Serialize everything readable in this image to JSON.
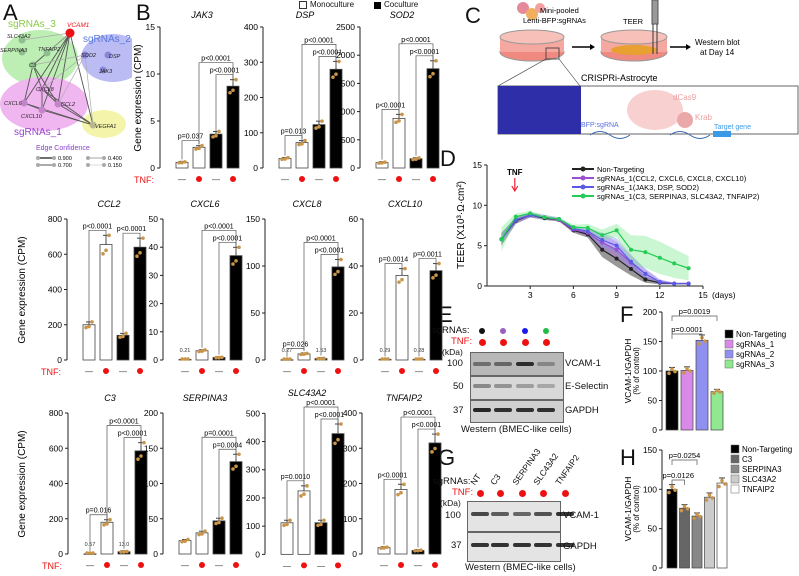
{
  "panel_letters": {
    "a": "A",
    "b": "B",
    "c": "C",
    "d": "D",
    "e": "E",
    "f": "F",
    "g": "G",
    "h": "H"
  },
  "panel_a": {
    "groups": {
      "g3": "sgRNAs_3",
      "g2": "sgRNAs_2",
      "g1": "sgRNAs_1"
    },
    "nodes": {
      "vcam1": "VCAM1",
      "slc43a2": "SLC43A2",
      "serpina3": "SERPINA3",
      "tnfaip2": "TNFAIP2",
      "c3": "C3",
      "sod2": "SOD2",
      "dsp": "DSP",
      "jak3": "JAK3",
      "cxcl8": "CXCL8",
      "cxcl6": "CXCL6",
      "ccl2": "CCL2",
      "cxcl10": "CXCL10",
      "vegfa1": "VEGFA1"
    },
    "legend_title": "Edge Confidence",
    "legend_values": [
      "0.900",
      "0.700",
      "0.400",
      "0.150"
    ],
    "colors": {
      "g3": "#b9ecb0",
      "g2": "#b8b8f4",
      "g1": "#eeb0ee",
      "vegfa": "#f3f3a8",
      "vcam1": "#ee1111"
    }
  },
  "panel_b": {
    "legend": {
      "mono": "Monoculture",
      "co": "Coculture"
    },
    "tnf_label": "TNF:",
    "minus": "—",
    "ylabel": "Gene expression (CPM)",
    "dot_color": "#c8954a",
    "tnf_color": "#ee1111"
  },
  "panel_c": {
    "virus_line1": "Mini-pooled",
    "virus_line2": "Lenti-BFP:sgRNAs",
    "teer": "TEER",
    "western_line1": "Western blot",
    "western_line2": "at Day 14",
    "astro": "CRISPRi-Astrocyte",
    "dcas9": "dCas9",
    "krab": "Krab",
    "sgrna": "BFP:sgRNA",
    "target": "Target gene"
  },
  "panel_d": {
    "tnf": "TNF",
    "days": "(days)"
  },
  "panel_e": {
    "sgrnas_label": "sgRNAs:",
    "tnf_label": "TNF:",
    "kda": "(kDa)",
    "markers": [
      "100",
      "50",
      "37"
    ],
    "bands": [
      "VCAM-1",
      "E-Selectin",
      "GAPDH"
    ],
    "caption": "Western (BMEC-like cells)",
    "dot_colors": [
      "#111111",
      "#9a5fc0",
      "#1a1aee",
      "#22bb44"
    ]
  },
  "panel_g": {
    "sgrnas_label": "sgRNAs:",
    "tnf_label": "TNF:",
    "lanes": [
      "NT",
      "C3",
      "SERPINA3",
      "SLC43A2",
      "TNFAIP2"
    ],
    "kda": "(kDa)",
    "markers": [
      "100",
      "37"
    ],
    "bands": [
      "VCAM-1",
      "GAPDH"
    ],
    "caption": "Western (BMEC-like cells)"
  },
  "chart_data": [
    {
      "type": "bar",
      "title": "JAK3",
      "ylim": [
        0,
        15
      ],
      "yticks": [
        "0",
        "5",
        "10",
        "15"
      ],
      "values": [
        0.6,
        2.2,
        3.6,
        8.7
      ],
      "tnf": [
        false,
        true,
        false,
        true
      ],
      "small_labels": [],
      "comparisons": [
        {
          "a": 0,
          "b": 1,
          "p": "p=0.037"
        },
        {
          "a": 2,
          "b": 3,
          "p": "p<0.0001"
        },
        {
          "a": 1,
          "b": 3,
          "p": "p<0.0001"
        }
      ]
    },
    {
      "type": "bar",
      "title": "DSP",
      "ylim": [
        0,
        400
      ],
      "yticks": [
        "0",
        "100",
        "200",
        "300",
        "400"
      ],
      "values": [
        27,
        72,
        123,
        280
      ],
      "tnf": [
        false,
        true,
        false,
        true
      ],
      "small_labels": [],
      "comparisons": [
        {
          "a": 0,
          "b": 1,
          "p": "p=0.013"
        },
        {
          "a": 2,
          "b": 3,
          "p": "p<0.0001"
        },
        {
          "a": 1,
          "b": 3,
          "p": "p<0.0001"
        }
      ]
    },
    {
      "type": "bar",
      "title": "SOD2",
      "ylim": [
        0,
        2500
      ],
      "yticks": [
        "0",
        "500",
        "1000",
        "1500",
        "2000",
        "2500"
      ],
      "values": [
        95,
        880,
        165,
        1760
      ],
      "tnf": [
        false,
        true,
        false,
        true
      ],
      "small_labels": [],
      "comparisons": [
        {
          "a": 0,
          "b": 1,
          "p": "p<0.0001"
        },
        {
          "a": 2,
          "b": 3,
          "p": "p<0.0001"
        },
        {
          "a": 1,
          "b": 3,
          "p": "p<0.0001"
        }
      ]
    },
    {
      "type": "bar",
      "title": "CCL2",
      "ylim": [
        0,
        800
      ],
      "yticks": [
        "0",
        "200",
        "400",
        "600",
        "800"
      ],
      "values": [
        200,
        655,
        140,
        640
      ],
      "tnf": [
        false,
        true,
        false,
        true
      ],
      "small_labels": [],
      "comparisons": [
        {
          "a": 0,
          "b": 1,
          "p": "p<0.0001"
        },
        {
          "a": 2,
          "b": 3,
          "p": "p<0.0001"
        }
      ]
    },
    {
      "type": "bar",
      "title": "CXCL6",
      "ylim": [
        0,
        50
      ],
      "yticks": [
        "0",
        "10",
        "20",
        "30",
        "40",
        "50"
      ],
      "values": [
        0.21,
        3.3,
        0.9,
        37
      ],
      "tnf": [
        false,
        true,
        false,
        true
      ],
      "small_labels": [
        {
          "bar": 0,
          "text": "0.21"
        }
      ],
      "comparisons": [
        {
          "a": 2,
          "b": 3,
          "p": "p<0.0001"
        },
        {
          "a": 1,
          "b": 3,
          "p": "p<0.0001"
        }
      ]
    },
    {
      "type": "bar",
      "title": "CXCL8",
      "ylim": [
        0,
        150
      ],
      "yticks": [
        "0",
        "50",
        "100",
        "150"
      ],
      "values": [
        0.27,
        6.5,
        1.53,
        99
      ],
      "tnf": [
        false,
        true,
        false,
        true
      ],
      "small_labels": [
        {
          "bar": 0,
          "text": "0.27"
        },
        {
          "bar": 2,
          "text": "1.53"
        }
      ],
      "comparisons": [
        {
          "a": 0,
          "b": 1,
          "p": "p=0.026"
        },
        {
          "a": 2,
          "b": 3,
          "p": "p<0.0001"
        },
        {
          "a": 1,
          "b": 3,
          "p": "p<0.0001"
        }
      ]
    },
    {
      "type": "bar",
      "title": "CXCL10",
      "ylim": [
        0,
        60
      ],
      "yticks": [
        "0",
        "20",
        "40",
        "60"
      ],
      "values": [
        0.29,
        36,
        0.28,
        38
      ],
      "tnf": [
        false,
        true,
        false,
        true
      ],
      "small_labels": [
        {
          "bar": 0,
          "text": "0.29"
        },
        {
          "bar": 2,
          "text": "0.28"
        }
      ],
      "comparisons": [
        {
          "a": 0,
          "b": 1,
          "p": "p=0.0014"
        },
        {
          "a": 2,
          "b": 3,
          "p": "p=0.0011"
        }
      ]
    },
    {
      "type": "bar",
      "title": "C3",
      "ylim": [
        0,
        800
      ],
      "yticks": [
        "0",
        "200",
        "400",
        "600",
        "800"
      ],
      "values": [
        0.57,
        180,
        13,
        585
      ],
      "tnf": [
        false,
        true,
        false,
        true
      ],
      "small_labels": [
        {
          "bar": 0,
          "text": "0.57"
        },
        {
          "bar": 2,
          "text": "13.0"
        }
      ],
      "comparisons": [
        {
          "a": 0,
          "b": 1,
          "p": "p=0.016"
        },
        {
          "a": 2,
          "b": 3,
          "p": "p<0.0001"
        },
        {
          "a": 1,
          "b": 3,
          "p": "p<0.0001"
        }
      ]
    },
    {
      "type": "bar",
      "title": "SERPINA3",
      "ylim": [
        0,
        200
      ],
      "yticks": [
        "0",
        "50",
        "100",
        "150",
        "200"
      ],
      "values": [
        19,
        30,
        47,
        131
      ],
      "tnf": [
        false,
        true,
        false,
        true
      ],
      "small_labels": [],
      "comparisons": [
        {
          "a": 2,
          "b": 3,
          "p": "p=0.0004"
        },
        {
          "a": 1,
          "b": 3,
          "p": "p=0.0001"
        }
      ]
    },
    {
      "type": "bar",
      "title": "SLC43A2",
      "ylim": [
        0,
        500
      ],
      "yticks": [
        "0",
        "100",
        "200",
        "300",
        "400",
        "500"
      ],
      "values": [
        112,
        225,
        112,
        428
      ],
      "tnf": [
        false,
        true,
        false,
        true
      ],
      "small_labels": [],
      "comparisons": [
        {
          "a": 0,
          "b": 1,
          "p": "p=0.0010"
        },
        {
          "a": 2,
          "b": 3,
          "p": "p<0.0001"
        },
        {
          "a": 1,
          "b": 3,
          "p": "p<0.0001"
        }
      ]
    },
    {
      "type": "bar",
      "title": "TNFAIP2",
      "ylim": [
        0,
        400
      ],
      "yticks": [
        "0",
        "100",
        "200",
        "300",
        "400"
      ],
      "values": [
        18,
        183,
        10,
        315
      ],
      "tnf": [
        false,
        true,
        false,
        true
      ],
      "small_labels": [],
      "comparisons": [
        {
          "a": 0,
          "b": 1,
          "p": "p<0.0001"
        },
        {
          "a": 2,
          "b": 3,
          "p": "p<0.0001"
        },
        {
          "a": 1,
          "b": 3,
          "p": "p<0.0001"
        }
      ]
    },
    {
      "type": "line",
      "title": "",
      "ylabel": "TEER (X10³·Ω·cm²)",
      "xlabel": "(days)",
      "xlim": [
        0,
        15
      ],
      "ylim": [
        0,
        15
      ],
      "xticks": [
        "3",
        "6",
        "9",
        "12",
        "15"
      ],
      "yticks": [
        "0",
        "5",
        "10",
        "15"
      ],
      "x": [
        1,
        2,
        3,
        4,
        5,
        6,
        7,
        8,
        9,
        10,
        11,
        12,
        13,
        14
      ],
      "series": [
        {
          "name": "Non-Targeting",
          "color": "#222222",
          "values": [
            5.8,
            8.1,
            8.8,
            8.4,
            8.2,
            6.9,
            6.4,
            4.5,
            3.4,
            2.1,
            0.8,
            0.4,
            0.3,
            0.3
          ],
          "spread": [
            0.8,
            0.4,
            0.3,
            0.2,
            0.2,
            0.3,
            0.4,
            0.9,
            1.0,
            0.8,
            0.4,
            0.2,
            0.1,
            0.1
          ]
        },
        {
          "name": "sgRNAs_1(CCL2, CXCL6, CXCL8, CXCL10)",
          "color": "#9a4fd0",
          "values": [
            5.8,
            8.2,
            8.8,
            8.5,
            8.2,
            7.0,
            6.6,
            5.4,
            4.5,
            2.9,
            1.5,
            0.5,
            0.3,
            0.3
          ],
          "spread": [
            0.6,
            0.4,
            0.3,
            0.3,
            0.2,
            0.3,
            0.4,
            1.0,
            1.0,
            0.9,
            0.6,
            0.3,
            0.1,
            0.1
          ]
        },
        {
          "name": "sgRNAs_1(JAK3, DSP, SOD2)",
          "color": "#5a5ae8",
          "values": [
            5.8,
            8.2,
            8.8,
            8.5,
            8.3,
            7.1,
            6.8,
            5.7,
            5.0,
            3.0,
            1.5,
            0.5,
            0.3,
            0.3
          ],
          "spread": [
            0.6,
            0.4,
            0.3,
            0.3,
            0.2,
            0.3,
            0.4,
            0.9,
            0.9,
            0.9,
            0.6,
            0.3,
            0.1,
            0.1
          ]
        },
        {
          "name": "sgRNAs_1(C3, SERPINA3, SLC43A2, TNFAIP2)",
          "color": "#22cc55",
          "values": [
            5.8,
            8.6,
            9.0,
            8.5,
            8.3,
            7.3,
            7.2,
            6.3,
            6.9,
            4.5,
            4.2,
            3.5,
            2.8,
            2.2
          ],
          "spread": [
            1.5,
            0.4,
            0.3,
            0.3,
            0.2,
            0.3,
            0.5,
            0.7,
            0.8,
            1.8,
            2.0,
            2.0,
            1.8,
            1.5
          ]
        }
      ],
      "annotation": {
        "text": "TNF",
        "x": 2
      }
    },
    {
      "type": "bar",
      "ylabel": "VCAM-1/GAPDH",
      "ylabel2": "(% of control)",
      "ylim": [
        0,
        200
      ],
      "yticks": [
        "0",
        "50",
        "100",
        "150",
        "200"
      ],
      "categories": [
        "Non-Targeting",
        "sgRNAs_1",
        "sgRNAs_2",
        "sgRNAs_3"
      ],
      "values": [
        100,
        101,
        152,
        65
      ],
      "colors": [
        "#000000",
        "#d98ae8",
        "#9090f0",
        "#90e890"
      ],
      "comparisons": [
        {
          "a": 0,
          "b": 2,
          "p": "p=0.0001"
        },
        {
          "a": 0,
          "b": 3,
          "p": "p=0.0019"
        }
      ],
      "legend": "right"
    },
    {
      "type": "bar",
      "ylabel": "VCAM-1/GAPDH",
      "ylabel2": "(% of control)",
      "ylim": [
        0,
        150
      ],
      "yticks": [
        "0",
        "50",
        "100",
        "150"
      ],
      "categories": [
        "Non-Targeting",
        "C3",
        "SERPINA3",
        "SLC43A2",
        "TNFAIP2"
      ],
      "values": [
        100,
        76,
        66,
        90,
        108
      ],
      "colors": [
        "#000000",
        "#666666",
        "#888888",
        "#cccccc",
        "#ffffff"
      ],
      "comparisons": [
        {
          "a": 0,
          "b": 1,
          "p": "p=0.0126"
        },
        {
          "a": 0,
          "b": 2,
          "p": "p=0.0254"
        }
      ],
      "legend": "right"
    }
  ]
}
